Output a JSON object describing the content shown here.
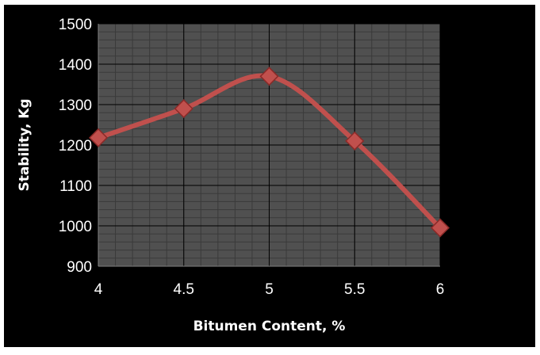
{
  "chart_data": {
    "type": "line",
    "title": "",
    "xlabel": "Bitumen Content, %",
    "ylabel": "Stability, Kg",
    "x": [
      4,
      4.5,
      5,
      5.5,
      6
    ],
    "x_tick_labels": [
      "4",
      "4.5",
      "5",
      "5.5",
      "6"
    ],
    "series": [
      {
        "values": [
          1218,
          1290,
          1370,
          1210,
          995
        ]
      }
    ],
    "xlim": [
      4,
      6
    ],
    "ylim": [
      900,
      1500
    ],
    "y_ticks": [
      900,
      1000,
      1100,
      1200,
      1300,
      1400,
      1500
    ],
    "grid": true,
    "legend": "none",
    "colors": {
      "background": "#000000",
      "plot_area": "#505050",
      "major_grid": "#000000",
      "minor_grid": "#3a3a3a",
      "line": "#c0504d",
      "marker": "#c0504d",
      "marker_edge": "#8b2a28",
      "text": "#ffffff"
    },
    "marker": "diamond"
  }
}
